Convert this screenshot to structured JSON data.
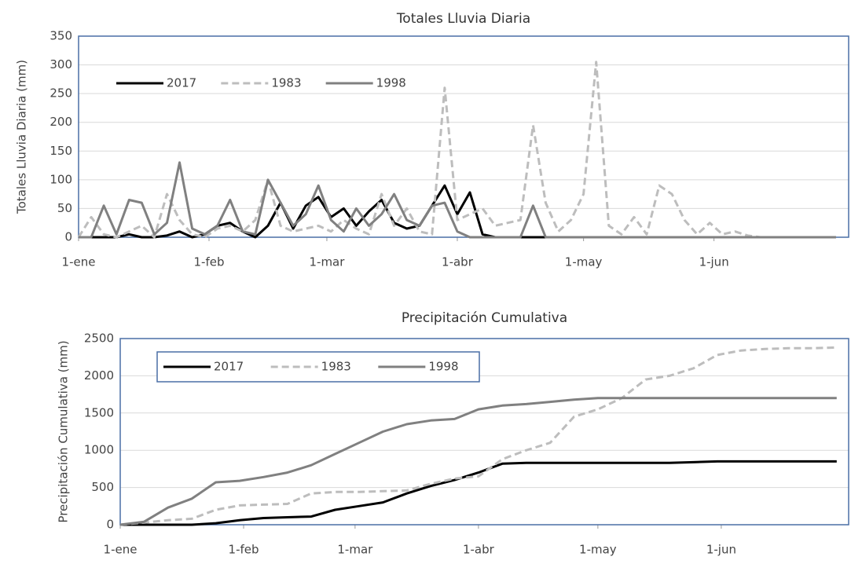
{
  "chart_data": [
    {
      "type": "line",
      "title": "Totales Lluvia Diaria",
      "y_label": "Totales Lluvia Diaria  (mm)",
      "x": [
        0,
        3,
        6,
        9,
        12,
        15,
        18,
        21,
        24,
        27,
        30,
        33,
        36,
        39,
        42,
        45,
        48,
        51,
        54,
        57,
        60,
        63,
        66,
        69,
        72,
        75,
        78,
        81,
        84,
        87,
        90,
        93,
        96,
        99,
        102,
        105,
        108,
        111,
        114,
        117,
        120,
        123,
        126,
        129,
        132,
        135,
        138,
        141,
        144,
        147,
        150,
        153,
        156,
        159,
        162,
        165,
        168,
        171,
        174,
        177,
        180
      ],
      "xlim": [
        0,
        183
      ],
      "xticks": [
        {
          "value": 0,
          "label": "1-ene"
        },
        {
          "value": 31,
          "label": "1-feb"
        },
        {
          "value": 59,
          "label": "1-mar"
        },
        {
          "value": 90,
          "label": "1-abr"
        },
        {
          "value": 120,
          "label": "1-may"
        },
        {
          "value": 151,
          "label": "1-jun"
        }
      ],
      "ylim": [
        0,
        350
      ],
      "yticks": [
        0,
        50,
        100,
        150,
        200,
        250,
        300,
        350
      ],
      "grid": true,
      "legend": "upper left",
      "series": [
        {
          "name": "2017",
          "color": "#000000",
          "dash": false,
          "values": [
            0,
            0,
            0,
            0,
            5,
            0,
            0,
            3,
            10,
            0,
            5,
            20,
            25,
            10,
            0,
            20,
            60,
            15,
            55,
            70,
            35,
            50,
            20,
            45,
            65,
            25,
            15,
            20,
            55,
            90,
            40,
            78,
            5,
            0,
            0,
            0,
            0,
            0,
            0,
            0,
            0,
            0,
            0,
            0,
            0,
            0,
            0,
            0,
            0,
            0,
            0,
            0,
            0,
            0,
            0,
            0,
            0,
            0,
            0,
            0,
            0
          ]
        },
        {
          "name": "1983",
          "color": "#bdbdbd",
          "dash": true,
          "values": [
            0,
            35,
            5,
            0,
            10,
            20,
            0,
            75,
            30,
            5,
            0,
            15,
            20,
            10,
            30,
            100,
            20,
            10,
            15,
            20,
            10,
            30,
            15,
            5,
            75,
            20,
            50,
            10,
            5,
            260,
            30,
            40,
            50,
            20,
            25,
            30,
            195,
            60,
            10,
            30,
            75,
            305,
            20,
            5,
            35,
            5,
            90,
            75,
            30,
            5,
            25,
            5,
            10,
            3,
            0,
            0,
            0,
            0,
            0,
            0,
            0
          ]
        },
        {
          "name": "1998",
          "color": "#808080",
          "dash": false,
          "values": [
            0,
            0,
            55,
            5,
            65,
            60,
            5,
            25,
            130,
            15,
            5,
            20,
            65,
            10,
            5,
            100,
            60,
            20,
            40,
            90,
            30,
            10,
            50,
            20,
            40,
            75,
            30,
            20,
            55,
            60,
            10,
            0,
            0,
            0,
            0,
            0,
            55,
            0,
            0,
            0,
            0,
            0,
            0,
            0,
            0,
            0,
            0,
            0,
            0,
            0,
            0,
            0,
            0,
            0,
            0,
            0,
            0,
            0,
            0,
            0,
            0
          ]
        }
      ]
    },
    {
      "type": "line",
      "title": "Precipitación Cumulativa",
      "y_label": "Precipitación  Cumulativa (mm)",
      "x": [
        0,
        6,
        12,
        18,
        24,
        30,
        36,
        42,
        48,
        54,
        60,
        66,
        72,
        78,
        84,
        90,
        96,
        102,
        108,
        114,
        120,
        126,
        132,
        138,
        144,
        150,
        156,
        162,
        168,
        174,
        180
      ],
      "xlim": [
        0,
        183
      ],
      "xticks": [
        {
          "value": 0,
          "label": "1-ene"
        },
        {
          "value": 31,
          "label": "1-feb"
        },
        {
          "value": 59,
          "label": "1-mar"
        },
        {
          "value": 90,
          "label": "1-abr"
        },
        {
          "value": 120,
          "label": "1-may"
        },
        {
          "value": 151,
          "label": "1-jun"
        }
      ],
      "ylim": [
        0,
        2500
      ],
      "yticks": [
        0,
        500,
        1000,
        1500,
        2000,
        2500
      ],
      "grid": true,
      "legend": "upper left",
      "series": [
        {
          "name": "2017",
          "color": "#000000",
          "dash": false,
          "values": [
            0,
            0,
            0,
            0,
            20,
            60,
            90,
            100,
            110,
            200,
            250,
            300,
            420,
            520,
            600,
            700,
            820,
            830,
            830,
            830,
            830,
            830,
            830,
            830,
            840,
            850,
            850,
            850,
            850,
            850,
            850
          ]
        },
        {
          "name": "1983",
          "color": "#bdbdbd",
          "dash": true,
          "values": [
            0,
            30,
            60,
            80,
            200,
            260,
            270,
            280,
            420,
            440,
            440,
            450,
            460,
            550,
            620,
            650,
            880,
            1000,
            1100,
            1450,
            1550,
            1700,
            1950,
            2000,
            2100,
            2280,
            2340,
            2360,
            2370,
            2370,
            2380
          ]
        },
        {
          "name": "1998",
          "color": "#808080",
          "dash": false,
          "values": [
            0,
            40,
            230,
            350,
            570,
            590,
            640,
            700,
            800,
            950,
            1100,
            1250,
            1350,
            1400,
            1420,
            1550,
            1600,
            1620,
            1650,
            1680,
            1700,
            1700,
            1700,
            1700,
            1700,
            1700,
            1700,
            1700,
            1700,
            1700,
            1700
          ]
        }
      ]
    }
  ]
}
